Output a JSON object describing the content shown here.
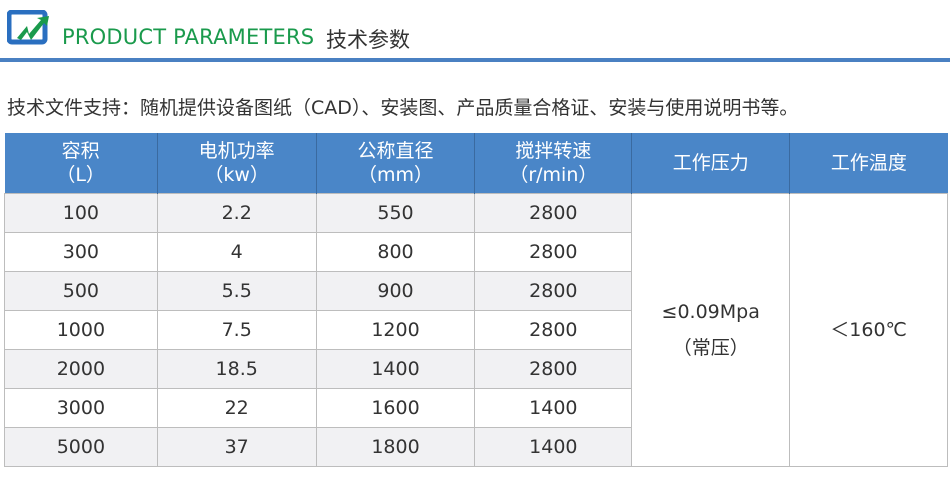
{
  "header": {
    "title_en": "PRODUCT PARAMETERS",
    "title_cn": "技术参数",
    "logo_colors": [
      "#2a6fc0",
      "#1a9a4c"
    ]
  },
  "intro": "技术文件支持：随机提供设备图纸（CAD）、安装图、产品质量合格证、安装与使用说明书等。",
  "table": {
    "columns": [
      {
        "name": "容积",
        "unit": "（L）"
      },
      {
        "name": "电机功率",
        "unit": "（kw）"
      },
      {
        "name": "公称直径",
        "unit": "（mm）"
      },
      {
        "name": "搅拌转速",
        "unit": "（r/min）"
      },
      {
        "name": "工作压力",
        "unit": ""
      },
      {
        "name": "工作温度",
        "unit": ""
      }
    ],
    "rows": [
      [
        "100",
        "2.2",
        "550",
        "2800"
      ],
      [
        "300",
        "4",
        "800",
        "2800"
      ],
      [
        "500",
        "5.5",
        "900",
        "2800"
      ],
      [
        "1000",
        "7.5",
        "1200",
        "2800"
      ],
      [
        "2000",
        "18.5",
        "1400",
        "2800"
      ],
      [
        "3000",
        "22",
        "1600",
        "1400"
      ],
      [
        "5000",
        "37",
        "1800",
        "1400"
      ]
    ],
    "pressure": "≤0.09Mpa",
    "pressure_note": "（常压）",
    "temperature": "＜160℃"
  },
  "colors": {
    "header_bg": "#4a86c8",
    "accent_green": "#1a9a4c",
    "rule": "#4a80c2"
  }
}
